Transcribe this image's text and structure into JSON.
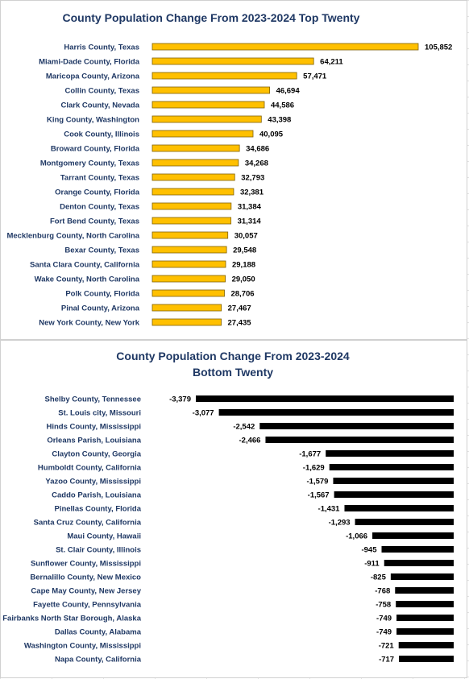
{
  "chart_data": [
    {
      "type": "bar",
      "orientation": "horizontal",
      "title": "County Population Change From 2023-2024 Top Twenty",
      "xlabel": "",
      "ylabel": "",
      "grid": false,
      "bar_color": "#ffc000",
      "bar_border": "#7f6000",
      "categories": [
        "Harris County, Texas",
        "Miami-Dade County, Florida",
        "Maricopa County, Arizona",
        "Collin County, Texas",
        "Clark County, Nevada",
        "King County, Washington",
        "Cook County, Illinois",
        "Broward County, Florida",
        "Montgomery County, Texas",
        "Tarrant County, Texas",
        "Orange County, Florida",
        "Denton County, Texas",
        "Fort Bend County, Texas",
        "Mecklenburg County, North Carolina",
        "Bexar County, Texas",
        "Santa Clara County, California",
        "Wake County, North Carolina",
        "Polk County, Florida",
        "Pinal County, Arizona",
        "New York County, New York"
      ],
      "values": [
        105852,
        64211,
        57471,
        46694,
        44586,
        43398,
        40095,
        34686,
        34268,
        32793,
        32381,
        31384,
        31314,
        30057,
        29548,
        29188,
        29050,
        28706,
        27467,
        27435
      ],
      "value_labels": [
        "105,852",
        "64,211",
        "57,471",
        "46,694",
        "44,586",
        "43,398",
        "40,095",
        "34,686",
        "34,268",
        "32,793",
        "32,381",
        "31,384",
        "31,314",
        "30,057",
        "29,548",
        "29,188",
        "29,050",
        "28,706",
        "27,467",
        "27,435"
      ],
      "xlim": [
        0,
        105852
      ]
    },
    {
      "type": "bar",
      "orientation": "horizontal",
      "title_lines": [
        "County Population Change From 2023-2024",
        "Bottom Twenty"
      ],
      "xlabel": "",
      "ylabel": "",
      "grid": false,
      "bar_color": "#000000",
      "categories": [
        "Shelby County, Tennessee",
        "St. Louis city, Missouri",
        "Hinds County, Mississippi",
        "Orleans Parish, Louisiana",
        "Clayton County, Georgia",
        "Humboldt County, California",
        "Yazoo County, Mississippi",
        "Caddo Parish, Louisiana",
        "Pinellas County, Florida",
        "Santa Cruz County, California",
        "Maui County, Hawaii",
        "St. Clair County, Illinois",
        "Sunflower County, Mississippi",
        "Bernalillo County, New Mexico",
        "Cape May County, New Jersey",
        "Fayette County, Pennsylvania",
        "Fairbanks North Star Borough, Alaska",
        "Dallas County, Alabama",
        "Washington County, Mississippi",
        "Napa County, California"
      ],
      "values": [
        -3379,
        -3077,
        -2542,
        -2466,
        -1677,
        -1629,
        -1579,
        -1567,
        -1431,
        -1293,
        -1066,
        -945,
        -911,
        -825,
        -768,
        -758,
        -749,
        -749,
        -721,
        -717
      ],
      "value_labels": [
        "-3,379",
        "-3,077",
        "-2,542",
        "-2,466",
        "-1,677",
        "-1,629",
        "-1,579",
        "-1,567",
        "-1,431",
        "-1,293",
        "-1,066",
        "-945",
        "-911",
        "-825",
        "-768",
        "-758",
        "-749",
        "-749",
        "-721",
        "-717"
      ],
      "xlim": [
        -3379,
        0
      ]
    }
  ]
}
